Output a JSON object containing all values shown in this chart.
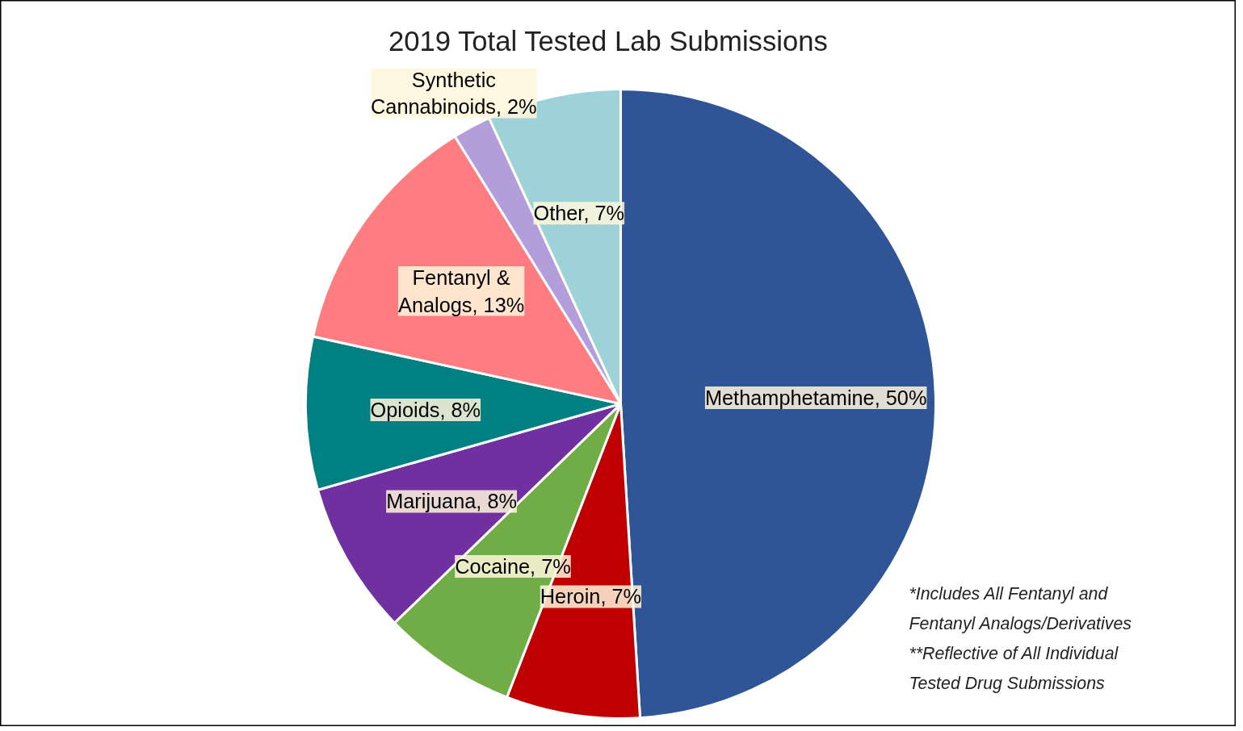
{
  "chart_data": {
    "type": "pie",
    "title": "2019 Total Tested Lab Submissions",
    "categories": [
      "Methamphetamine",
      "Heroin",
      "Cocaine",
      "Marijuana",
      "Opioids",
      "Fentanyl & Analogs",
      "Synthetic Cannabinoids",
      "Other"
    ],
    "values": [
      50,
      7,
      7,
      8,
      8,
      13,
      2,
      7
    ],
    "value_labels": [
      "50%",
      "7%",
      "7%",
      "8%",
      "8%",
      "13%",
      "2%",
      "7%"
    ],
    "colors": [
      "#2f5597",
      "#c00000",
      "#70ad47",
      "#7030a0",
      "#008080",
      "#ff7c80",
      "#b39ddb",
      "#9dd3d8"
    ],
    "annotations": [
      "*Includes All Fentanyl and Fentanyl Analogs/Derivatives",
      "**Reflective of All Individual Tested Drug Submissions"
    ]
  }
}
